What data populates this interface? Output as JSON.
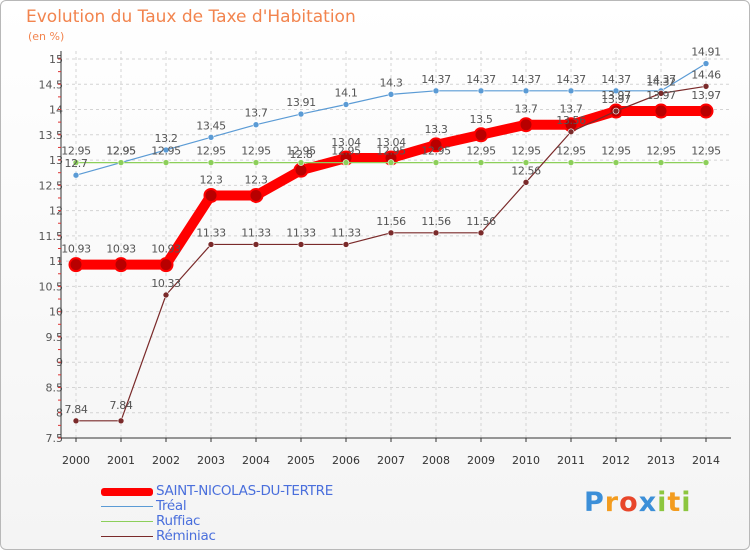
{
  "header": {
    "title": "Evolution du Taux de Taxe d'Habitation",
    "subtitle": "(en %)"
  },
  "chart_data": {
    "type": "line",
    "title": "Evolution du Taux de Taxe d'Habitation",
    "ylabel": "(en %)",
    "xlabel": "",
    "categories": [
      "2000",
      "2001",
      "2002",
      "2003",
      "2004",
      "2005",
      "2006",
      "2007",
      "2008",
      "2009",
      "2010",
      "2011",
      "2012",
      "2013",
      "2014"
    ],
    "ylim": [
      7.5,
      15
    ],
    "yticks": [
      7.5,
      8,
      8.5,
      9,
      9.5,
      10,
      10.5,
      11,
      11.5,
      12,
      12.5,
      13,
      13.5,
      14,
      14.5,
      15
    ],
    "grid": true,
    "series": [
      {
        "name": "SAINT-NICOLAS-DU-TERTRE",
        "color": "#ff0000",
        "values": [
          10.93,
          10.93,
          10.93,
          12.3,
          12.3,
          12.8,
          13.04,
          13.04,
          13.3,
          13.5,
          13.7,
          13.7,
          13.97,
          13.97,
          13.97
        ],
        "labels": [
          "10.93",
          "10.93",
          "10.93",
          "12.3",
          "12.3",
          "12.8",
          "13.04",
          "13.04",
          "13.3",
          "13.5",
          "13.7",
          "13.7",
          "13.97",
          "13.97",
          "13.97"
        ]
      },
      {
        "name": "Tréal",
        "color": "#5b9bd5",
        "values": [
          12.7,
          12.95,
          13.2,
          13.45,
          13.7,
          13.91,
          14.1,
          14.3,
          14.37,
          14.37,
          14.37,
          14.37,
          14.37,
          14.37,
          14.91
        ],
        "labels": [
          "12.7",
          "12.95",
          "13.2",
          "13.45",
          "13.7",
          "13.91",
          "14.1",
          "14.3",
          "14.37",
          "14.37",
          "14.37",
          "14.37",
          "14.37",
          "14.37",
          "14.91"
        ]
      },
      {
        "name": "Ruffiac",
        "color": "#8ccf5a",
        "values": [
          12.95,
          12.95,
          12.95,
          12.95,
          12.95,
          12.95,
          12.95,
          12.95,
          12.95,
          12.95,
          12.95,
          12.95,
          12.95,
          12.95,
          12.95
        ],
        "labels": [
          "12.95",
          "12.95",
          "12.95",
          "12.95",
          "12.95",
          "12.95",
          "12.95",
          "12.95",
          "12.95",
          "12.95",
          "12.95",
          "12.95",
          "12.95",
          "12.95",
          "12.95"
        ]
      },
      {
        "name": "Réminiac",
        "color": "#7a2a2a",
        "values": [
          7.84,
          7.84,
          10.33,
          11.33,
          11.33,
          11.33,
          11.33,
          11.56,
          11.56,
          11.56,
          12.56,
          13.56,
          13.97,
          14.32,
          14.46
        ],
        "labels": [
          "7.84",
          "7.84",
          "10.33",
          "11.33",
          "11.33",
          "11.33",
          "11.33",
          "11.56",
          "11.56",
          "11.56",
          "12.56",
          "13.56",
          "13.97",
          "14.32",
          "14.46"
        ]
      }
    ]
  },
  "legend": {
    "items": [
      {
        "label": "SAINT-NICOLAS-DU-TERTRE",
        "color": "#ff0000"
      },
      {
        "label": "Tréal",
        "color": "#5b9bd5"
      },
      {
        "label": "Ruffiac",
        "color": "#8ccf5a"
      },
      {
        "label": "Réminiac",
        "color": "#7a2a2a"
      }
    ]
  },
  "brand": {
    "letters": [
      "P",
      "r",
      "o",
      "x",
      "i",
      "t",
      "i"
    ],
    "colors": [
      "#3c8fd8",
      "#f39c1f",
      "#e8462a",
      "#3c8fd8",
      "#8cc63f",
      "#f39c1f",
      "#8cc63f"
    ]
  }
}
